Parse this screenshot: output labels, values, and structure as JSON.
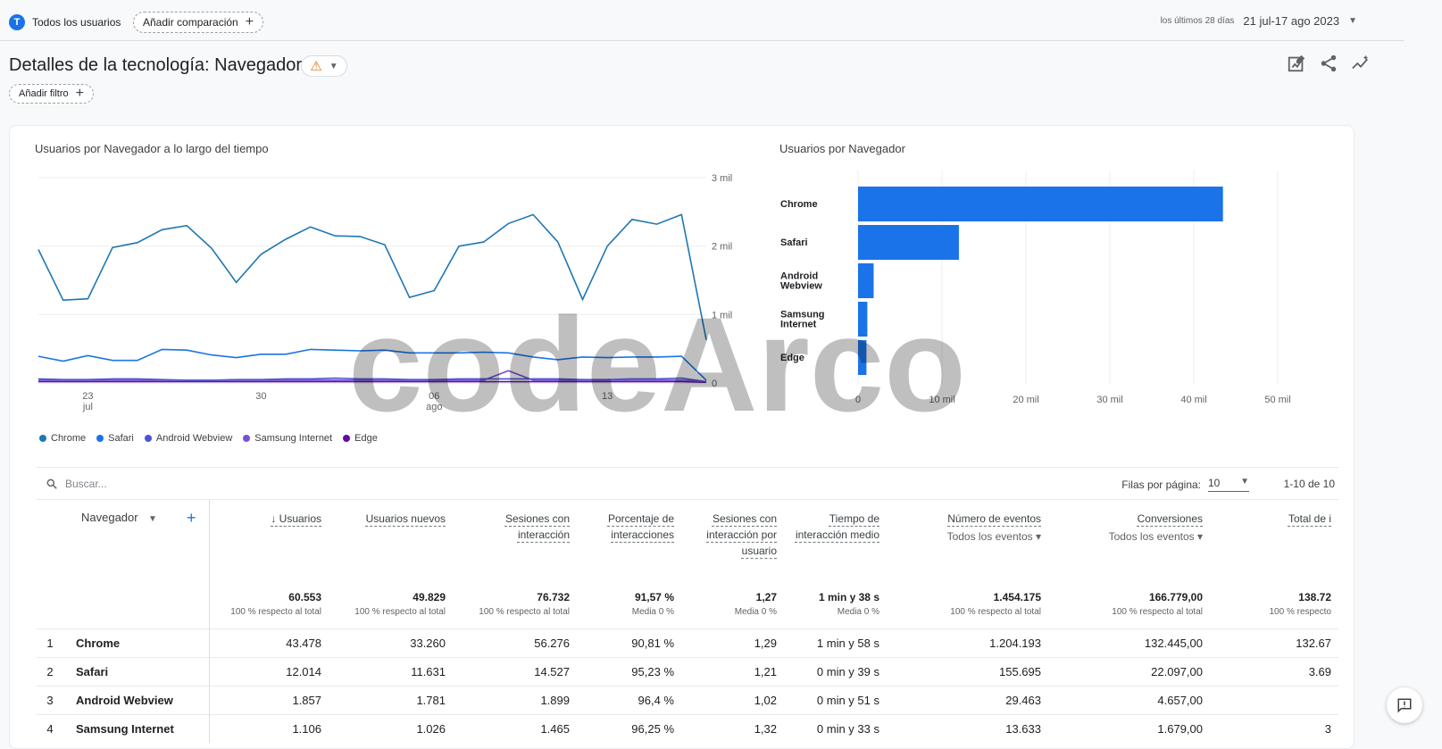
{
  "header": {
    "segment_initial": "T",
    "segment_label": "Todos los usuarios",
    "compare_label": "Añadir comparación",
    "date_prefix": "los últimos 28 días",
    "date_range": "21 jul-17 ago 2023"
  },
  "page": {
    "title": "Detalles de la tecnología: Navegador",
    "filter_label": "Añadir filtro"
  },
  "line_chart": {
    "title": "Usuarios por Navegador a lo largo del tiempo"
  },
  "bar_chart": {
    "title": "Usuarios por Navegador"
  },
  "chart_data": [
    {
      "type": "line",
      "title": "Usuarios por Navegador a lo largo del tiempo",
      "x": [
        "21 jul",
        "22 jul",
        "23 jul",
        "24 jul",
        "25 jul",
        "26 jul",
        "27 jul",
        "28 jul",
        "29 jul",
        "30 jul",
        "31 jul",
        "1 ago",
        "2 ago",
        "3 ago",
        "4 ago",
        "5 ago",
        "6 ago",
        "7 ago",
        "8 ago",
        "9 ago",
        "10 ago",
        "11 ago",
        "12 ago",
        "13 ago",
        "14 ago",
        "15 ago",
        "16 ago",
        "17 ago"
      ],
      "x_tick_labels": [
        {
          "at": 2,
          "label": "23",
          "sublabel": "jul"
        },
        {
          "at": 9,
          "label": "30",
          "sublabel": ""
        },
        {
          "at": 16,
          "label": "06",
          "sublabel": "ago"
        },
        {
          "at": 23,
          "label": "13",
          "sublabel": ""
        }
      ],
      "y_tick_labels": [
        "0",
        "1 mil",
        "2 mil",
        "3 mil"
      ],
      "ylim": [
        0,
        3000
      ],
      "grid": true,
      "legend": "bottom-left",
      "series": [
        {
          "name": "Chrome",
          "color": "#1f77b4",
          "values": [
            1950,
            1210,
            1230,
            1980,
            2050,
            2240,
            2300,
            1970,
            1470,
            1880,
            2100,
            2280,
            2150,
            2140,
            2020,
            1250,
            1350,
            2000,
            2060,
            2330,
            2460,
            2060,
            1220,
            2000,
            2390,
            2320,
            2460,
            630
          ]
        },
        {
          "name": "Safari",
          "color": "#1a73e8",
          "values": [
            390,
            320,
            400,
            330,
            330,
            490,
            480,
            410,
            370,
            420,
            420,
            490,
            480,
            470,
            480,
            440,
            440,
            440,
            450,
            440,
            380,
            340,
            380,
            370,
            380,
            380,
            390,
            40
          ]
        },
        {
          "name": "Android Webview",
          "color": "#4c54d4",
          "values": [
            60,
            50,
            50,
            60,
            60,
            50,
            40,
            40,
            50,
            50,
            60,
            60,
            70,
            60,
            60,
            50,
            50,
            60,
            60,
            60,
            60,
            60,
            50,
            50,
            60,
            60,
            70,
            20
          ]
        },
        {
          "name": "Samsung Internet",
          "color": "#7b4ed6",
          "values": [
            40,
            40,
            40,
            40,
            40,
            40,
            40,
            40,
            40,
            40,
            40,
            40,
            40,
            40,
            40,
            40,
            40,
            40,
            40,
            180,
            40,
            40,
            40,
            40,
            40,
            40,
            40,
            20
          ]
        },
        {
          "name": "Edge",
          "color": "#5e0da1",
          "values": [
            20,
            20,
            20,
            20,
            20,
            20,
            20,
            20,
            20,
            20,
            20,
            20,
            20,
            20,
            20,
            20,
            20,
            20,
            20,
            20,
            20,
            20,
            20,
            20,
            20,
            20,
            20,
            10
          ]
        }
      ]
    },
    {
      "type": "bar",
      "orientation": "horizontal",
      "title": "Usuarios por Navegador",
      "categories": [
        "Chrome",
        "Safari",
        "Android Webview",
        "Samsung Internet",
        "Edge"
      ],
      "values": [
        43478,
        12014,
        1857,
        1106,
        1000
      ],
      "xlim": [
        0,
        50000
      ],
      "x_tick_labels": [
        "0",
        "10 mil",
        "20 mil",
        "30 mil",
        "40 mil",
        "50 mil"
      ],
      "color": "#1a73e8"
    }
  ],
  "table": {
    "search_placeholder": "Buscar...",
    "rows_per_page_label": "Filas por página:",
    "rows_per_page_value": "10",
    "pagination": "1-10 de 10",
    "dimension_header": "Navegador",
    "columns": [
      {
        "label": "Usuarios",
        "sorted": "↓"
      },
      {
        "label": "Usuarios nuevos"
      },
      {
        "label": "Sesiones con interacción"
      },
      {
        "label": "Porcentaje de interacciones"
      },
      {
        "label": "Sesiones con interacción por usuario"
      },
      {
        "label": "Tiempo de interacción medio"
      },
      {
        "label": "Número de eventos",
        "sub": "Todos los eventos"
      },
      {
        "label": "Conversiones",
        "sub": "Todos los eventos"
      },
      {
        "label": "Total de i"
      }
    ],
    "totals": [
      {
        "value": "60.553",
        "sub": "100 % respecto al total"
      },
      {
        "value": "49.829",
        "sub": "100 % respecto al total"
      },
      {
        "value": "76.732",
        "sub": "100 % respecto al total"
      },
      {
        "value": "91,57 %",
        "sub": "Media 0 %"
      },
      {
        "value": "1,27",
        "sub": "Media 0 %"
      },
      {
        "value": "1 min y 38 s",
        "sub": "Media 0 %"
      },
      {
        "value": "1.454.175",
        "sub": "100 % respecto al total"
      },
      {
        "value": "166.779,00",
        "sub": "100 % respecto al total"
      },
      {
        "value": "138.72",
        "sub": "100 % respecto"
      }
    ],
    "rows": [
      {
        "index": "1",
        "name": "Chrome",
        "values": [
          "43.478",
          "33.260",
          "56.276",
          "90,81 %",
          "1,29",
          "1 min y 58 s",
          "1.204.193",
          "132.445,00",
          "132.67"
        ]
      },
      {
        "index": "2",
        "name": "Safari",
        "values": [
          "12.014",
          "11.631",
          "14.527",
          "95,23 %",
          "1,21",
          "0 min y 39 s",
          "155.695",
          "22.097,00",
          "3.69"
        ]
      },
      {
        "index": "3",
        "name": "Android Webview",
        "values": [
          "1.857",
          "1.781",
          "1.899",
          "96,4 %",
          "1,02",
          "0 min y 51 s",
          "29.463",
          "4.657,00",
          ""
        ]
      },
      {
        "index": "4",
        "name": "Samsung Internet",
        "values": [
          "1.106",
          "1.026",
          "1.465",
          "96,25 %",
          "1,32",
          "0 min y 33 s",
          "13.633",
          "1.679,00",
          "3"
        ]
      }
    ]
  },
  "colors": {
    "accent": "#1a73e8",
    "warning": "#e8710a"
  },
  "watermark": "codeArco"
}
